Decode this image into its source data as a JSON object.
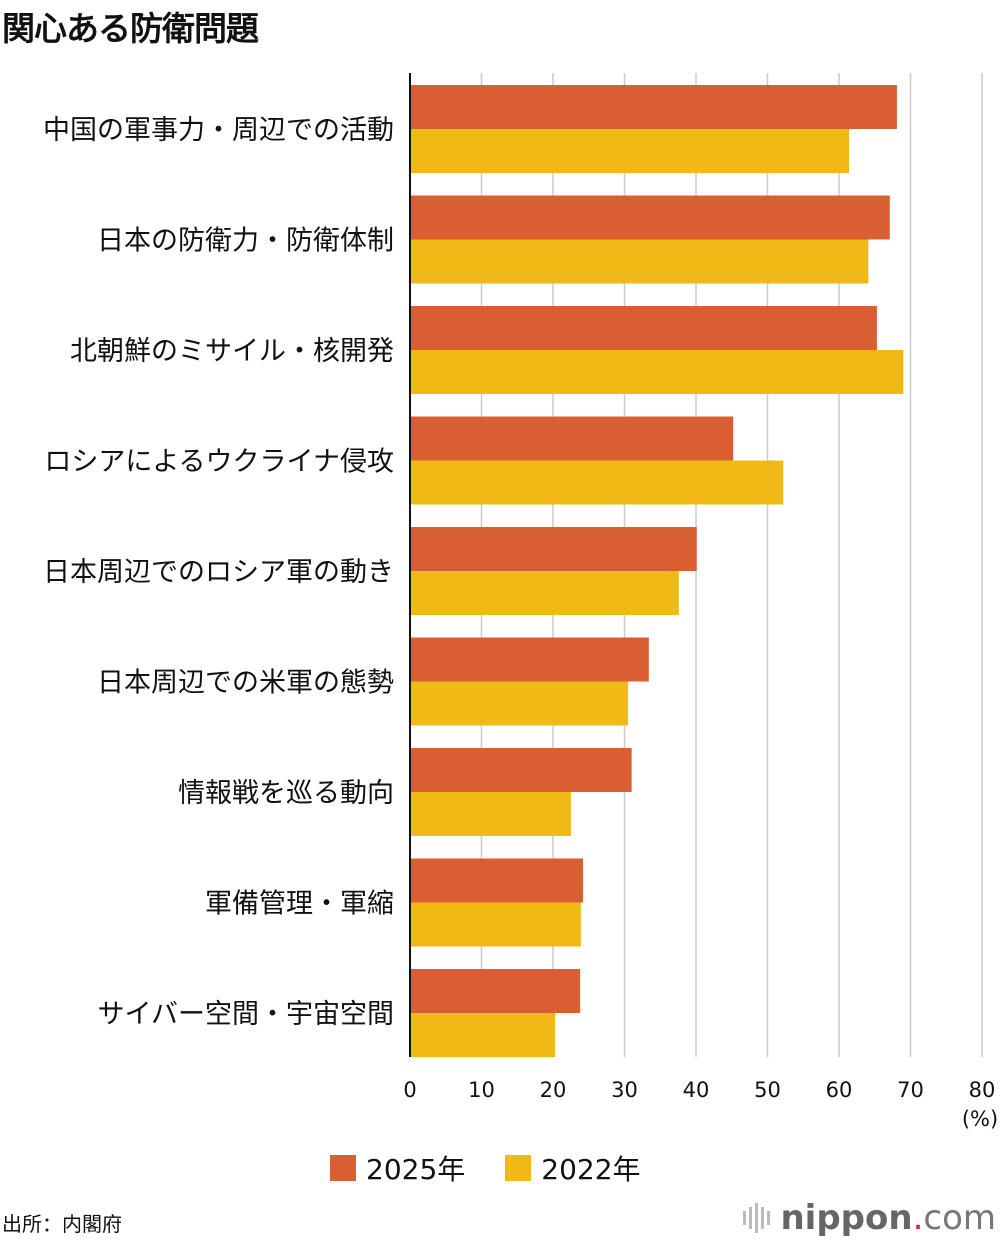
{
  "title": "関心ある防衛問題",
  "source": "出所：内閣府",
  "logo": {
    "name": "nippon",
    "dot": ".",
    "tld": "com"
  },
  "colors": {
    "2025": "#d95f32",
    "2022": "#f0b916",
    "grid": "#cccccc",
    "axis": "#111111"
  },
  "chart_data": {
    "type": "bar",
    "orientation": "horizontal",
    "categories": [
      "中国の軍事力・周辺での活動",
      "日本の防衛力・防衛体制",
      "北朝鮮のミサイル・核開発",
      "ロシアによるウクライナ侵攻",
      "日本周辺でのロシア軍の動き",
      "日本周辺での米軍の態勢",
      "情報戦を巡る動向",
      "軍備管理・軍縮",
      "サイバー空間・宇宙空間"
    ],
    "series": [
      {
        "name": "2025年",
        "values": [
          68.1,
          67.1,
          65.3,
          45.2,
          40.1,
          33.4,
          31.0,
          24.2,
          23.8
        ]
      },
      {
        "name": "2022年",
        "values": [
          61.4,
          64.1,
          69.0,
          52.2,
          37.6,
          30.5,
          22.5,
          23.9,
          20.3
        ]
      }
    ],
    "xlim": [
      0,
      80
    ],
    "xticks": [
      0,
      10,
      20,
      30,
      40,
      50,
      60,
      70,
      80
    ],
    "xunit": "(%)",
    "grid": true,
    "legend": "bottom"
  }
}
